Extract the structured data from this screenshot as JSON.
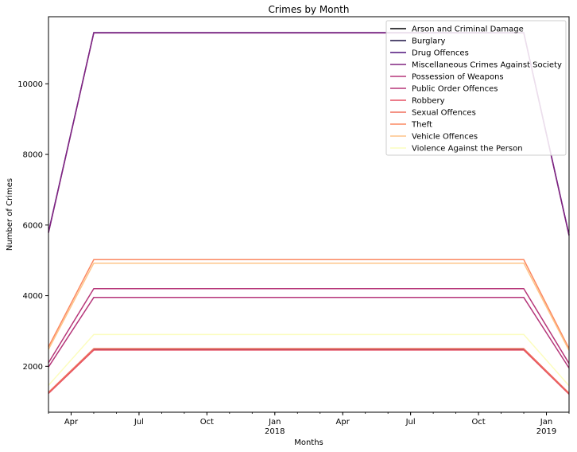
{
  "chart_data": {
    "type": "line",
    "title": "Crimes by Month",
    "xlabel": "Months",
    "ylabel": "Number of Crimes",
    "x": [
      "2017-03",
      "2017-05",
      "2018-12",
      "2019-02"
    ],
    "xlim": [
      "2017-03",
      "2019-02"
    ],
    "ylim": [
      700,
      11900
    ],
    "yticks": [
      2000,
      4000,
      6000,
      8000,
      10000
    ],
    "xticks": [
      {
        "date": "2017-04",
        "label": "Apr",
        "sublabel": ""
      },
      {
        "date": "2017-07",
        "label": "Jul",
        "sublabel": ""
      },
      {
        "date": "2017-10",
        "label": "Oct",
        "sublabel": ""
      },
      {
        "date": "2018-01",
        "label": "Jan",
        "sublabel": "2018"
      },
      {
        "date": "2018-04",
        "label": "Apr",
        "sublabel": ""
      },
      {
        "date": "2018-07",
        "label": "Jul",
        "sublabel": ""
      },
      {
        "date": "2018-10",
        "label": "Oct",
        "sublabel": ""
      },
      {
        "date": "2019-01",
        "label": "Jan",
        "sublabel": "2019"
      }
    ],
    "legend_position": "top-right",
    "grid": false,
    "series": [
      {
        "name": "Arson and Criminal Damage",
        "color": "#000004",
        "values": [
          1250,
          2480,
          2480,
          1230
        ]
      },
      {
        "name": "Burglary",
        "color": "#1b1044",
        "values": [
          1240,
          2470,
          2470,
          1220
        ]
      },
      {
        "name": "Drug Offences",
        "color": "#4f127b",
        "values": [
          5800,
          11450,
          11450,
          5720
        ]
      },
      {
        "name": "Miscellaneous Crimes Against Society",
        "color": "#812581",
        "values": [
          5780,
          11440,
          11440,
          5700
        ]
      },
      {
        "name": "Possession of Weapons",
        "color": "#b5367a",
        "values": [
          1980,
          3950,
          3950,
          1950
        ]
      },
      {
        "name": "Public Order Offences",
        "color": "#b73779",
        "values": [
          2100,
          4200,
          4200,
          2080
        ]
      },
      {
        "name": "Robbery",
        "color": "#e55064",
        "values": [
          1230,
          2460,
          2460,
          1210
        ]
      },
      {
        "name": "Sexual Offences",
        "color": "#f06e5c",
        "values": [
          1260,
          2500,
          2500,
          1240
        ]
      },
      {
        "name": "Theft",
        "color": "#fb8861",
        "values": [
          2550,
          5020,
          5020,
          2500
        ]
      },
      {
        "name": "Vehicle Offences",
        "color": "#fec488",
        "values": [
          2480,
          4920,
          4920,
          2450
        ]
      },
      {
        "name": "Violence Against the Person",
        "color": "#fcfdbf",
        "values": [
          1460,
          2900,
          2900,
          1450
        ]
      }
    ]
  }
}
